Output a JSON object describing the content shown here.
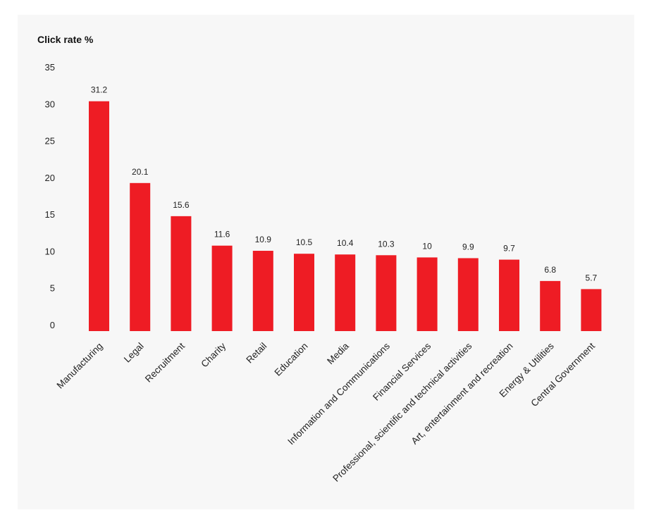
{
  "chart_data": {
    "type": "bar",
    "ylabel": "Click rate %",
    "ylim": [
      0,
      35
    ],
    "yticks": [
      0,
      5,
      10,
      15,
      20,
      25,
      30,
      35
    ],
    "grid": false,
    "legend": "none",
    "bar_color": "#ee1c24",
    "categories": [
      "Manufacturing",
      "Legal",
      "Recruitment",
      "Charity",
      "Retail",
      "Education",
      "Media",
      "Information and Communications",
      "Financial Services",
      "Professional, scientific and technical activities",
      "Art, entertainment and recreation",
      "Energy & Utilities",
      "Central Government"
    ],
    "values": [
      31.2,
      20.1,
      15.6,
      11.6,
      10.9,
      10.5,
      10.4,
      10.3,
      10,
      9.9,
      9.7,
      6.8,
      5.7
    ]
  }
}
